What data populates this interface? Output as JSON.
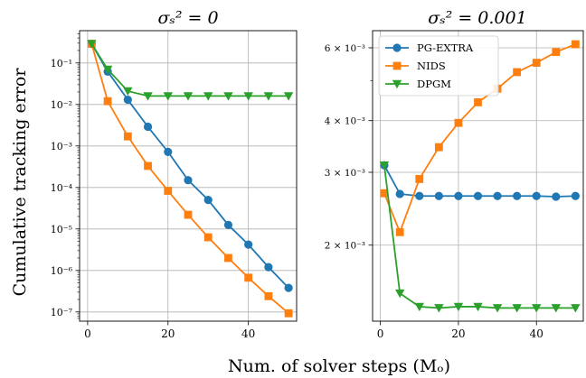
{
  "figure": {
    "ylabel": "Cumulative tracking error",
    "xlabel": "Num. of solver steps (Mₒ)"
  },
  "colors": {
    "PG-EXTRA": "#1f77b4",
    "NIDS": "#ff7f0e",
    "DPGM": "#2ca02c"
  },
  "chart_data": [
    {
      "type": "line",
      "title": "σₛ² = 0",
      "yscale": "log",
      "xlim": [
        -2,
        52
      ],
      "ylim": [
        6e-08,
        0.6
      ],
      "xticks": [
        0,
        20,
        40
      ],
      "xtick_labels": [
        "0",
        "20",
        "40"
      ],
      "yticks": [
        1e-07,
        1e-06,
        1e-05,
        0.0001,
        0.001,
        0.01,
        0.1
      ],
      "ytick_labels": [
        "10⁻⁷",
        "10⁻⁶",
        "10⁻⁵",
        "10⁻⁴",
        "10⁻³",
        "10⁻²",
        "10⁻¹"
      ],
      "grid": true,
      "x": [
        1,
        5,
        10,
        15,
        20,
        25,
        30,
        35,
        40,
        45,
        50
      ],
      "series": [
        {
          "name": "PG-EXTRA",
          "marker": "circle",
          "values": [
            0.29,
            0.062,
            0.013,
            0.0029,
            0.00072,
            0.00015,
            5e-05,
            1.25e-05,
            4.2e-06,
            1.2e-06,
            3.8e-07
          ]
        },
        {
          "name": "NIDS",
          "marker": "square",
          "values": [
            0.29,
            0.012,
            0.0017,
            0.00033,
            8.3e-05,
            2.2e-05,
            6.3e-06,
            2e-06,
            6.7e-07,
            2.4e-07,
            9.3e-08
          ]
        },
        {
          "name": "DPGM",
          "marker": "triangle-down",
          "values": [
            0.29,
            0.07,
            0.021,
            0.016,
            0.016,
            0.016,
            0.016,
            0.016,
            0.016,
            0.016,
            0.016
          ]
        }
      ]
    },
    {
      "type": "line",
      "title": "σₛ² = 0.001",
      "yscale": "log",
      "xlim": [
        -2,
        52
      ],
      "ylim": [
        0.00131,
        0.0066
      ],
      "xticks": [
        0,
        20,
        40
      ],
      "xtick_labels": [
        "0",
        "20",
        "40"
      ],
      "yticks": [
        0.002,
        0.003,
        0.004,
        0.006
      ],
      "ytick_labels": [
        "2 × 10⁻³",
        "3 × 10⁻³",
        "4 × 10⁻³",
        "6 × 10⁻³"
      ],
      "grid": true,
      "legend": "top-left",
      "x": [
        1,
        5,
        10,
        15,
        20,
        25,
        30,
        35,
        40,
        45,
        50
      ],
      "series": [
        {
          "name": "PG-EXTRA",
          "marker": "circle",
          "values": [
            0.00312,
            0.00266,
            0.00263,
            0.00263,
            0.00263,
            0.00263,
            0.00263,
            0.00263,
            0.00263,
            0.00262,
            0.00263
          ]
        },
        {
          "name": "NIDS",
          "marker": "square",
          "values": [
            0.00267,
            0.00215,
            0.00289,
            0.00345,
            0.00395,
            0.00443,
            0.00478,
            0.00524,
            0.00552,
            0.00586,
            0.00612
          ]
        },
        {
          "name": "DPGM",
          "marker": "triangle-down",
          "values": [
            0.00312,
            0.00153,
            0.00142,
            0.00141,
            0.00142,
            0.00142,
            0.00141,
            0.00141,
            0.00141,
            0.00141,
            0.00141
          ]
        }
      ]
    }
  ]
}
